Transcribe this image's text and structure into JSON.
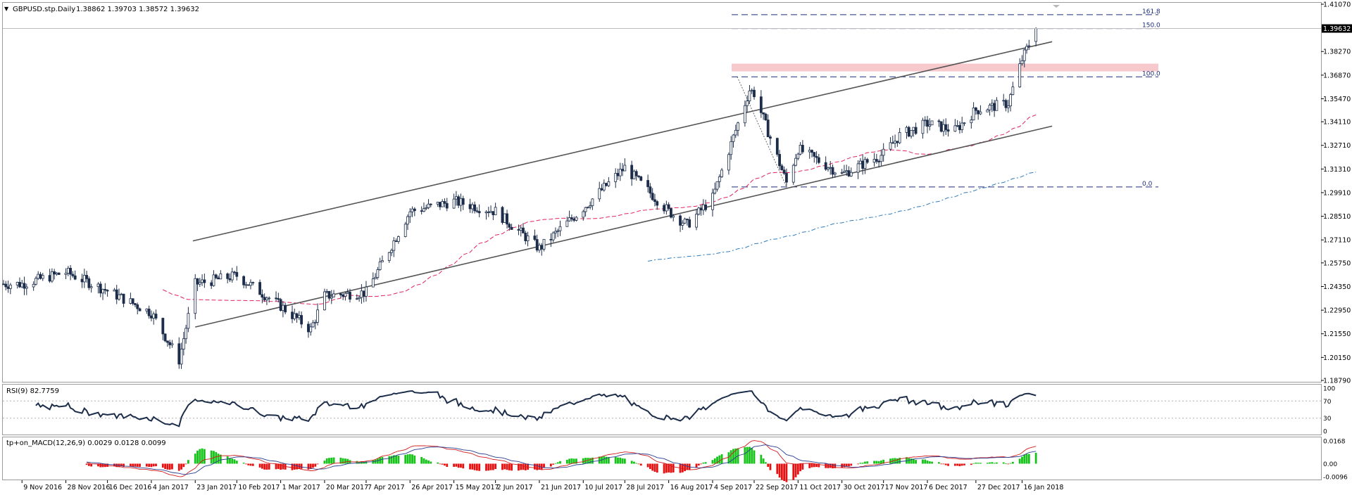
{
  "header": {
    "arrow_glyph": "▼",
    "symbol": "GBPUSD.stp.Daily",
    "ohlc": "1.38862 1.39703 1.38572 1.39632"
  },
  "price_scale": {
    "labels": [
      "1.41070",
      "1.39632",
      "1.38270",
      "1.36870",
      "1.35470",
      "1.34110",
      "1.32710",
      "1.31310",
      "1.29910",
      "1.28510",
      "1.27110",
      "1.25750",
      "1.24350",
      "1.22950",
      "1.21550",
      "1.20150",
      "1.18790"
    ],
    "current_price": 1.39632,
    "current_label": "1.39632"
  },
  "fibonacci": [
    {
      "label": "161.8",
      "value": 1.4045
    },
    {
      "label": "150.0",
      "value": 1.3963
    },
    {
      "label": "100.0",
      "value": 1.3677
    },
    {
      "label": "0.0",
      "value": 1.3025
    }
  ],
  "x_labels": [
    "9 Nov 2016",
    "28 Nov 2016",
    "16 Dec 2016",
    "4 Jan 2017",
    "23 Jan 2017",
    "10 Feb 2017",
    "1 Mar 2017",
    "20 Mar 2017",
    "7 Apr 2017",
    "26 Apr 2017",
    "15 May 2017",
    "2 Jun 2017",
    "21 Jun 2017",
    "10 Jul 2017",
    "28 Jul 2017",
    "16 Aug 2017",
    "4 Sep 2017",
    "22 Sep 2017",
    "11 Oct 2017",
    "30 Oct 2017",
    "17 Nov 2017",
    "6 Dec 2017",
    "27 Dec 2017",
    "16 Jan 2018"
  ],
  "rsi": {
    "label": "RSI(9) 82.7759",
    "scale": [
      "100",
      "70",
      "30",
      "0"
    ],
    "levels": [
      70,
      30
    ],
    "last_value": 82.7759
  },
  "macd": {
    "label": "tp+on_MACD(12,26,9) 0.0029 0.0128 0.0099",
    "scale": [
      "0.0168",
      "0.00",
      "-0.0096"
    ],
    "values": [
      0.0029,
      0.0128,
      0.0099
    ]
  },
  "colors": {
    "candle": "#1c2d4a",
    "channel": "#555555",
    "ma_fast": "#e0245e",
    "ma_slow": "#2e7ab8",
    "fib": "#1c2d7a",
    "zone": "#f7c9cc",
    "macd_up": "#17c21a",
    "macd_down": "#e81111",
    "signal_blue": "#2a3d8f",
    "signal_red": "#d11b1b"
  },
  "chart_data": {
    "type": "candlestick",
    "title": "GBPUSD.stp.Daily",
    "ylim": [
      1.1879,
      1.4107
    ],
    "x_range": [
      "2016-11-01",
      "2018-01-22"
    ],
    "key_levels": [
      {
        "date": "2016-11-09",
        "price": 1.245
      },
      {
        "date": "2016-11-28",
        "price": 1.252
      },
      {
        "date": "2016-12-16",
        "price": 1.241
      },
      {
        "date": "2017-01-04",
        "price": 1.228
      },
      {
        "date": "2017-01-16",
        "price": 1.2
      },
      {
        "date": "2017-01-23",
        "price": 1.245
      },
      {
        "date": "2017-02-10",
        "price": 1.25
      },
      {
        "date": "2017-03-01",
        "price": 1.232
      },
      {
        "date": "2017-03-14",
        "price": 1.218
      },
      {
        "date": "2017-03-20",
        "price": 1.238
      },
      {
        "date": "2017-04-07",
        "price": 1.24
      },
      {
        "date": "2017-04-26",
        "price": 1.288
      },
      {
        "date": "2017-05-15",
        "price": 1.294
      },
      {
        "date": "2017-06-02",
        "price": 1.288
      },
      {
        "date": "2017-06-21",
        "price": 1.266
      },
      {
        "date": "2017-07-10",
        "price": 1.29
      },
      {
        "date": "2017-07-28",
        "price": 1.314
      },
      {
        "date": "2017-08-16",
        "price": 1.288
      },
      {
        "date": "2017-08-24",
        "price": 1.28
      },
      {
        "date": "2017-09-04",
        "price": 1.296
      },
      {
        "date": "2017-09-20",
        "price": 1.36
      },
      {
        "date": "2017-09-22",
        "price": 1.358
      },
      {
        "date": "2017-10-06",
        "price": 1.305
      },
      {
        "date": "2017-10-11",
        "price": 1.325
      },
      {
        "date": "2017-10-30",
        "price": 1.31
      },
      {
        "date": "2017-11-17",
        "price": 1.322
      },
      {
        "date": "2017-11-24",
        "price": 1.333
      },
      {
        "date": "2017-12-06",
        "price": 1.34
      },
      {
        "date": "2017-12-18",
        "price": 1.336
      },
      {
        "date": "2017-12-27",
        "price": 1.348
      },
      {
        "date": "2018-01-10",
        "price": 1.352
      },
      {
        "date": "2018-01-16",
        "price": 1.378
      },
      {
        "date": "2018-01-22",
        "price": 1.396
      }
    ],
    "channel": {
      "upper": [
        {
          "date": "2017-01-22",
          "price": 1.2705
        },
        {
          "date": "2018-01-29",
          "price": 1.3885
        }
      ],
      "lower": [
        {
          "date": "2017-01-23",
          "price": 1.2195
        },
        {
          "date": "2018-01-29",
          "price": 1.3385
        }
      ]
    },
    "resistance_zone": {
      "from": 1.3709,
      "to": 1.3755
    }
  }
}
